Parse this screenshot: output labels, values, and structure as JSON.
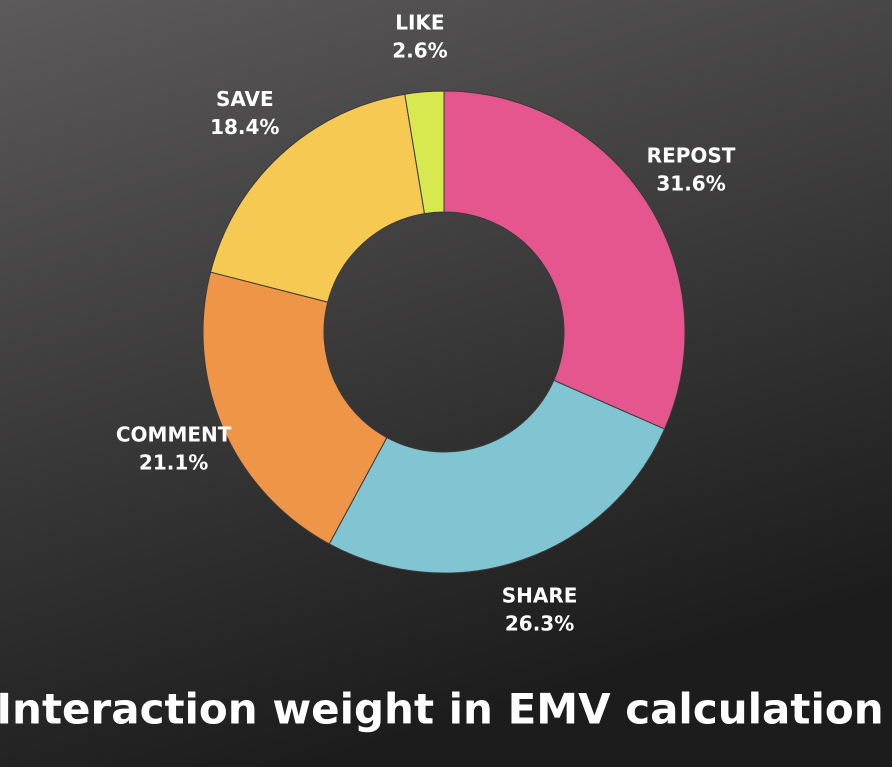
{
  "chart_data": {
    "type": "pie",
    "donut": true,
    "title": "Interaction weight in EMV calculation",
    "categories": [
      "REPOST",
      "SHARE",
      "COMMENT",
      "SAVE",
      "LIKE"
    ],
    "values": [
      31.6,
      26.3,
      21.1,
      18.4,
      2.6
    ],
    "value_labels": [
      "31.6%",
      "26.3%",
      "21.1%",
      "18.4%",
      "2.6%"
    ],
    "colors": [
      "#e5568f",
      "#80c5d1",
      "#ee9548",
      "#f5c952",
      "#d7e94f"
    ]
  }
}
